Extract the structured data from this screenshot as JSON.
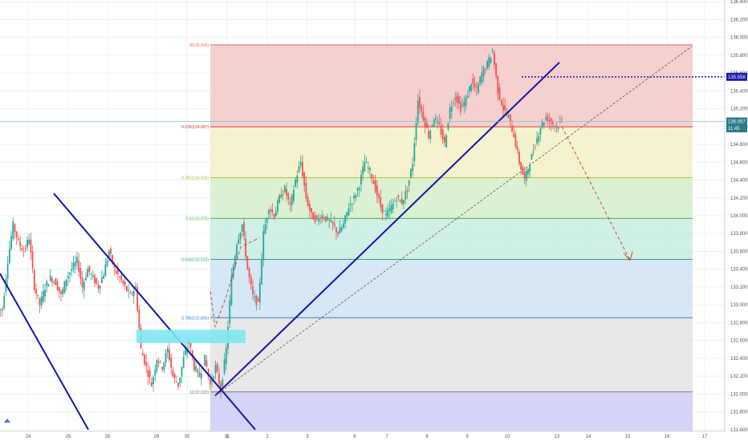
{
  "chart_data": {
    "type": "candlestick",
    "instrument_note": "",
    "x_ticks": [
      "24",
      "25",
      "26",
      "29",
      "30",
      "31",
      "1",
      "2",
      "3",
      "6",
      "7",
      "8",
      "9",
      "10",
      "13",
      "14",
      "15",
      "16",
      "17"
    ],
    "y_ticks": [
      "131.600",
      "131.800",
      "132.000",
      "132.200",
      "132.400",
      "132.600",
      "132.800",
      "133.000",
      "133.200",
      "133.400",
      "133.600",
      "133.800",
      "134.000",
      "134.200",
      "134.400",
      "134.600",
      "134.800",
      "135.000",
      "135.200",
      "135.400",
      "135.600",
      "135.800",
      "136.000",
      "136.200",
      "136.400"
    ],
    "ylim": [
      131.58,
      136.42
    ],
    "price_labels": [
      {
        "text": "135.558",
        "value": 135.558,
        "color": "#1a1aa8"
      },
      {
        "text": "135.057",
        "value": 135.057,
        "color": "#2b7a8a"
      },
      {
        "text": "11:45",
        "value": 134.98,
        "color": "#2b7a8a"
      }
    ],
    "fib_levels": [
      {
        "label": "0(135.916)",
        "value": 135.916,
        "color": "#e06666",
        "zone": "#f4c7c7"
      },
      {
        "label": "0.236(134.997)",
        "value": 134.997,
        "color": "#d04040",
        "zone": "#f3f1c4"
      },
      {
        "label": "0.382(134.426)",
        "value": 134.426,
        "color": "#b8b84a",
        "zone": "#d6efcb"
      },
      {
        "label": "0.5(133.970)",
        "value": 133.97,
        "color": "#4caf50",
        "zone": "#c8ece2"
      },
      {
        "label": "0.618(133.510)",
        "value": 133.51,
        "color": "#2e9e7a",
        "zone": "#cfe3f3"
      },
      {
        "label": "0.786(132.855)",
        "value": 132.855,
        "color": "#3a7cc8",
        "zone": "#e4e4e4"
      },
      {
        "label": "1(132.023)",
        "value": 132.023,
        "color": "#777777",
        "zone": "#cccdf4"
      }
    ],
    "series_close": [
      132.95,
      133.5,
      133.9,
      133.7,
      133.6,
      133.75,
      133.2,
      133.0,
      133.2,
      133.3,
      133.25,
      133.1,
      133.3,
      133.4,
      133.5,
      133.2,
      133.4,
      133.3,
      133.2,
      133.35,
      133.6,
      133.4,
      133.3,
      133.2,
      133.1,
      133.2,
      132.5,
      132.3,
      132.1,
      132.4,
      132.3,
      132.5,
      132.2,
      132.1,
      132.4,
      132.6,
      132.3,
      132.2,
      132.4,
      132.1,
      132.3,
      132.05,
      132.5,
      133.3,
      133.7,
      133.9,
      133.4,
      133.1,
      133.0,
      133.8,
      134.1,
      134.0,
      134.2,
      134.3,
      134.1,
      134.4,
      134.6,
      134.2,
      134.0,
      133.95,
      134.0,
      133.95,
      133.9,
      133.8,
      133.9,
      134.1,
      134.2,
      134.35,
      134.6,
      134.5,
      134.3,
      134.1,
      134.0,
      134.1,
      134.2,
      134.15,
      134.3,
      134.6,
      135.3,
      135.1,
      134.9,
      135.1,
      135.0,
      134.8,
      135.2,
      135.35,
      135.2,
      135.3,
      135.5,
      135.4,
      135.6,
      135.7,
      135.85,
      135.4,
      135.2,
      135.1,
      134.9,
      134.6,
      134.4,
      134.6,
      134.8,
      135.0,
      135.1,
      135.05,
      135.0,
      135.06
    ]
  },
  "annotations": {
    "fib_drawing": "Fib retracement",
    "trend": "Rising trendline"
  }
}
